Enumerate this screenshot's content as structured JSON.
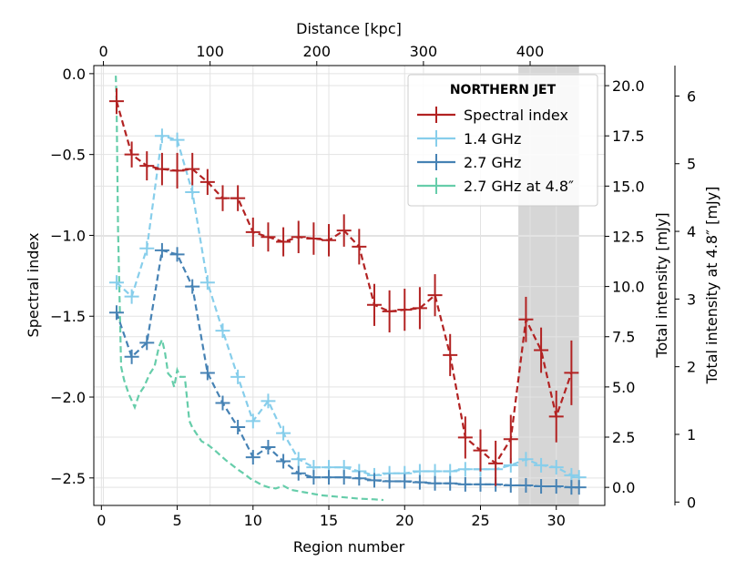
{
  "chart_data": {
    "type": "line",
    "title": "",
    "xlabel": "Region number",
    "xlim": [
      -0.5,
      33.2
    ],
    "xticks": [
      0,
      5,
      10,
      15,
      20,
      25,
      30
    ],
    "top_xlabel": "Distance [kpc]",
    "top_xlim": [
      -9,
      470
    ],
    "top_xticks": [
      0,
      100,
      200,
      300,
      400
    ],
    "ylabel": "Spectral index",
    "ylim": [
      -2.67,
      0.05
    ],
    "yticks": [
      -2.5,
      -2.0,
      -1.5,
      -1.0,
      -0.5,
      0.0
    ],
    "y2label": "Total intensity [mJy]",
    "y2lim": [
      -0.9,
      21.0
    ],
    "y2ticks": [
      0.0,
      2.5,
      5.0,
      7.5,
      10.0,
      12.5,
      15.0,
      17.5,
      20.0
    ],
    "y3label": "Total intensity at 4.8″ [mJy]",
    "y3lim": [
      -0.05,
      6.45
    ],
    "y3ticks": [
      0,
      1,
      2,
      3,
      4,
      5,
      6
    ],
    "shaded_x_range": [
      27.5,
      31.5
    ],
    "legend": {
      "title": "NORTHERN JET",
      "location": "top-right"
    },
    "series": [
      {
        "name": "Spectral index",
        "axis": "left",
        "color": "#b22222",
        "x": [
          1,
          2,
          3,
          4,
          5,
          6,
          7,
          8,
          9,
          10,
          11,
          12,
          13,
          14,
          15,
          16,
          17,
          18,
          19,
          20,
          21,
          22,
          23,
          24,
          25,
          26,
          27,
          28,
          29,
          30,
          31
        ],
        "y": [
          -0.17,
          -0.5,
          -0.57,
          -0.59,
          -0.6,
          -0.59,
          -0.67,
          -0.77,
          -0.77,
          -0.98,
          -1.01,
          -1.04,
          -1.01,
          -1.02,
          -1.03,
          -0.97,
          -1.07,
          -1.43,
          -1.47,
          -1.46,
          -1.45,
          -1.37,
          -1.74,
          -2.25,
          -2.33,
          -2.41,
          -2.26,
          -1.52,
          -1.71,
          -2.12,
          -1.85
        ],
        "err": [
          0.08,
          0.08,
          0.09,
          0.1,
          0.11,
          0.1,
          0.08,
          0.08,
          0.08,
          0.09,
          0.09,
          0.09,
          0.1,
          0.1,
          0.1,
          0.1,
          0.11,
          0.13,
          0.13,
          0.13,
          0.13,
          0.13,
          0.13,
          0.13,
          0.13,
          0.14,
          0.15,
          0.14,
          0.14,
          0.16,
          0.2
        ]
      },
      {
        "name": "1.4 GHz",
        "axis": "right",
        "color": "#87ceeb",
        "x": [
          1,
          2,
          3,
          4,
          5,
          6,
          7,
          8,
          9,
          10,
          11,
          12,
          13,
          14,
          15,
          16,
          17,
          18,
          19,
          20,
          21,
          22,
          23,
          24,
          25,
          26,
          27,
          28,
          29,
          30,
          31,
          31.5
        ],
        "y": [
          10.2,
          9.5,
          11.9,
          17.5,
          17.3,
          14.7,
          10.2,
          7.8,
          5.5,
          3.3,
          4.3,
          2.7,
          1.4,
          1.0,
          1.0,
          1.0,
          0.8,
          0.6,
          0.7,
          0.7,
          0.8,
          0.8,
          0.8,
          0.9,
          0.9,
          0.9,
          1.1,
          1.4,
          1.1,
          1.0,
          0.6,
          0.5
        ]
      },
      {
        "name": "2.7 GHz",
        "axis": "right",
        "color": "#4682b4",
        "x": [
          1,
          2,
          3,
          4,
          5,
          6,
          7,
          8,
          9,
          10,
          11,
          12,
          13,
          14,
          15,
          16,
          17,
          18,
          19,
          20,
          21,
          22,
          23,
          24,
          25,
          26,
          27,
          28,
          29,
          30,
          31,
          31.5
        ],
        "y": [
          8.7,
          6.5,
          7.2,
          11.8,
          11.6,
          10.0,
          5.7,
          4.2,
          3.0,
          1.5,
          2.0,
          1.3,
          0.7,
          0.5,
          0.5,
          0.5,
          0.45,
          0.35,
          0.3,
          0.3,
          0.25,
          0.2,
          0.2,
          0.15,
          0.15,
          0.15,
          0.1,
          0.1,
          0.05,
          0.05,
          0.0,
          0.0
        ]
      },
      {
        "name": "2.7 GHz at 4.8″",
        "axis": "right3",
        "color": "#66cdaa",
        "x": [
          0.95,
          1.0,
          1.1,
          1.3,
          1.5,
          1.8,
          2.0,
          2.2,
          2.5,
          2.8,
          3.0,
          3.2,
          3.5,
          3.8,
          4.0,
          4.2,
          4.4,
          4.6,
          4.8,
          5.0,
          5.2,
          5.5,
          5.8,
          6.0,
          6.3,
          6.6,
          7.0,
          7.4,
          7.8,
          8.2,
          8.6,
          9.0,
          9.4,
          9.8,
          10.2,
          10.6,
          11.0,
          11.5,
          12.0,
          12.5,
          13.0,
          13.5,
          14.0,
          14.5,
          15.0,
          15.5,
          16.0,
          16.5,
          17.0,
          17.5,
          18.0,
          18.6
        ],
        "y": [
          6.3,
          5.9,
          4.0,
          2.0,
          1.8,
          1.6,
          1.5,
          1.4,
          1.6,
          1.7,
          1.8,
          1.9,
          2.0,
          2.3,
          2.4,
          2.2,
          1.9,
          1.85,
          1.7,
          1.95,
          1.85,
          1.85,
          1.2,
          1.1,
          1.0,
          0.9,
          0.85,
          0.78,
          0.7,
          0.62,
          0.55,
          0.48,
          0.42,
          0.35,
          0.3,
          0.25,
          0.22,
          0.2,
          0.24,
          0.18,
          0.16,
          0.14,
          0.12,
          0.1,
          0.09,
          0.08,
          0.07,
          0.06,
          0.05,
          0.045,
          0.04,
          0.03
        ]
      }
    ]
  }
}
